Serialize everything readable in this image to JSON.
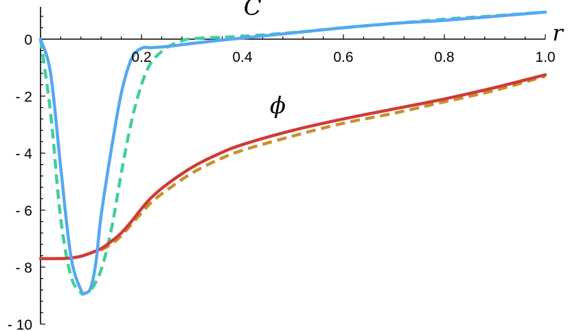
{
  "chart_data": {
    "type": "line",
    "title": "",
    "xlabel": "r",
    "ylabel": "",
    "xlim": [
      0,
      1.0
    ],
    "ylim": [
      -10,
      1
    ],
    "x_ticks": [
      0.2,
      0.4,
      0.6,
      0.8,
      1.0
    ],
    "x_tick_labels": [
      "0.2",
      "0.4",
      "0.6",
      "0.8",
      "1.0"
    ],
    "y_ticks": [
      0,
      -2,
      -4,
      -6,
      -8,
      -10
    ],
    "y_tick_labels": [
      "0",
      "- 2",
      "- 4",
      "- 6",
      "- 8",
      "- 10"
    ],
    "grid": false,
    "curve_labels": [
      {
        "text": "C",
        "x": 0.42,
        "y": 0.85
      },
      {
        "text": "ϕ",
        "x": 0.47,
        "y": -2.6
      }
    ],
    "series": [
      {
        "name": "",
        "color": "#55a8f0",
        "dash": "solid",
        "x": [
          0,
          0.02,
          0.04,
          0.06,
          0.08,
          0.09,
          0.1,
          0.11,
          0.12,
          0.14,
          0.16,
          0.18,
          0.2,
          0.22,
          0.25,
          0.3,
          0.35,
          0.4,
          0.5,
          0.6,
          0.7,
          0.8,
          0.9,
          1.0
        ],
        "y": [
          0,
          -1.2,
          -4.5,
          -7.6,
          -8.8,
          -8.9,
          -8.7,
          -7.8,
          -6.2,
          -3.9,
          -1.9,
          -0.7,
          -0.32,
          -0.3,
          -0.26,
          -0.15,
          -0.05,
          0.04,
          0.22,
          0.4,
          0.55,
          0.66,
          0.8,
          0.95
        ]
      },
      {
        "name": "",
        "color": "#3fcf9f",
        "dash": "dashed",
        "x": [
          0,
          0.02,
          0.04,
          0.06,
          0.08,
          0.09,
          0.1,
          0.12,
          0.14,
          0.16,
          0.18,
          0.2,
          0.22,
          0.25,
          0.28,
          0.3,
          0.35,
          0.4,
          0.5,
          0.6,
          0.7,
          0.8,
          0.9,
          1.0
        ],
        "y": [
          0,
          -2.6,
          -6.3,
          -8.3,
          -8.9,
          -8.9,
          -8.8,
          -8.1,
          -6.7,
          -4.7,
          -2.9,
          -1.6,
          -0.8,
          -0.3,
          -0.06,
          0.02,
          0.06,
          0.1,
          0.23,
          0.4,
          0.55,
          0.7,
          0.82,
          0.95
        ]
      },
      {
        "name": "",
        "color": "#d03a36",
        "dash": "solid",
        "x": [
          0,
          0.04,
          0.06,
          0.08,
          0.1,
          0.12,
          0.14,
          0.16,
          0.18,
          0.2,
          0.22,
          0.25,
          0.3,
          0.35,
          0.4,
          0.5,
          0.6,
          0.7,
          0.8,
          0.9,
          1.0
        ],
        "y": [
          -7.7,
          -7.7,
          -7.68,
          -7.62,
          -7.5,
          -7.35,
          -7.1,
          -6.8,
          -6.4,
          -5.95,
          -5.55,
          -5.1,
          -4.5,
          -4.05,
          -3.7,
          -3.2,
          -2.8,
          -2.45,
          -2.1,
          -1.7,
          -1.25
        ]
      },
      {
        "name": "",
        "color": "#c8902a",
        "dash": "dashed",
        "x": [
          0.12,
          0.14,
          0.16,
          0.18,
          0.2,
          0.22,
          0.25,
          0.3,
          0.35,
          0.4,
          0.5,
          0.6,
          0.7,
          0.8,
          0.9,
          1.0
        ],
        "y": [
          -7.4,
          -7.2,
          -6.9,
          -6.5,
          -6.1,
          -5.72,
          -5.3,
          -4.7,
          -4.25,
          -3.9,
          -3.4,
          -2.95,
          -2.6,
          -2.2,
          -1.8,
          -1.3
        ]
      }
    ]
  }
}
